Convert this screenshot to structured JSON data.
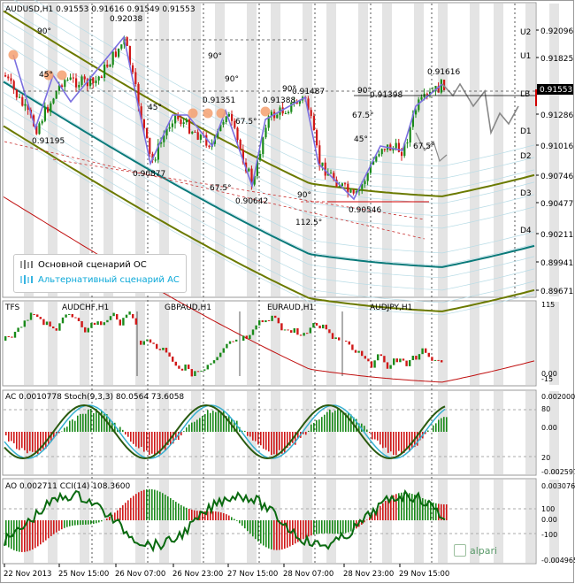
{
  "main": {
    "header": "AUDUSD,H1  0.91553 0.91616 0.91549 0.91553",
    "price_labels": [
      "0.92096",
      "0.91825",
      "0.91553",
      "0.91286",
      "0.91016",
      "0.90746",
      "0.90477",
      "0.90211",
      "0.89941",
      "0.89671"
    ],
    "current_price": "0.91553",
    "level_labels": [
      "U2",
      "U1",
      "LB",
      "D1",
      "D2",
      "D3",
      "D4"
    ],
    "point_labels": [
      "0.92038",
      "0.91195",
      "0.90877",
      "0.91351",
      "0.90642",
      "0.91388",
      "0.91487",
      "0.90546",
      "0.91398",
      "0.91616"
    ],
    "angle_labels": [
      "90°",
      "45°",
      "90°",
      "45°",
      "90°",
      "67.5°",
      "67.5°",
      "90°",
      "67.5°",
      "45°",
      "67.5°",
      "90°",
      "112.5°",
      "90°"
    ],
    "legend": {
      "main": "Основной сценарий ОС",
      "alt": "Альтернативный сценарий АС"
    },
    "colors": {
      "bull": "#1a8a1a",
      "bear": "#d01818",
      "channel": "#808000",
      "mid": "#0a8a8a",
      "wave": "#7b6fe0",
      "accent": "#d00000"
    }
  },
  "tfs": {
    "header": "TFS",
    "symbols": [
      "AUDCHF,H1",
      "GBPAUD,H1",
      "EURAUD,H1",
      "AUDJPY,H1"
    ],
    "scale": [
      "115",
      "0.00",
      "-15"
    ]
  },
  "ac": {
    "header": "AC 0.0010778  Stoch(9,3,3) 80.0564 73.6058",
    "scale": [
      "0.0020004",
      "80",
      "0.00",
      "20",
      "-0.0025973"
    ]
  },
  "ao": {
    "header": "AO 0.002711  CCI(14) 108.3600",
    "scale": [
      "0.0030765",
      "100",
      "0.00",
      "-100",
      "-0.0049653"
    ]
  },
  "time_axis": [
    "22 Nov 2013",
    "25 Nov 15:00",
    "26 Nov 07:00",
    "26 Nov 23:00",
    "27 Nov 15:00",
    "28 Nov 07:00",
    "28 Nov 23:00",
    "29 Nov 15:00"
  ],
  "branding": {
    "logo_text": "alpari"
  }
}
